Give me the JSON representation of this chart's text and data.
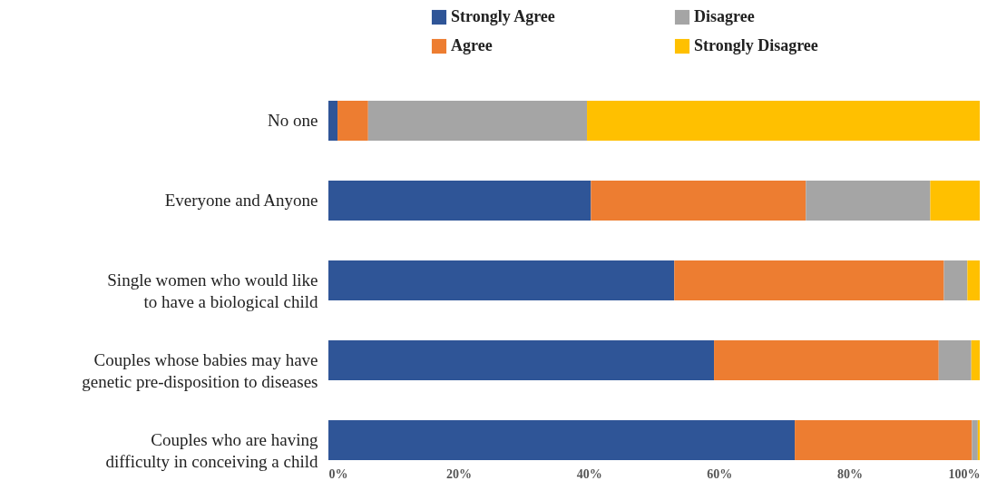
{
  "chart_data": {
    "type": "bar",
    "orientation": "horizontal",
    "stacked": true,
    "legend": "top",
    "categories": [
      "No one",
      "Everyone and Anyone",
      "Single women who would like\nto have a biological child",
      "Couples whose babies may have\ngenetic pre-disposition to diseases",
      "Couples who are having\ndifficulty in conceiving a child"
    ],
    "series": [
      {
        "name": "Strongly Agree",
        "color": "#2f5597",
        "values": [
          1.4,
          40.3,
          53.1,
          59.2,
          71.6
        ]
      },
      {
        "name": "Agree",
        "color": "#ed7d31",
        "values": [
          4.7,
          33.0,
          41.4,
          34.5,
          27.2
        ]
      },
      {
        "name": "Disagree",
        "color": "#a5a5a5",
        "values": [
          33.6,
          19.1,
          3.6,
          5.0,
          0.9
        ]
      },
      {
        "name": "Strongly Disagree",
        "color": "#ffc000",
        "values": [
          60.3,
          7.6,
          1.9,
          1.3,
          0.3
        ]
      }
    ],
    "xlim": [
      0,
      100
    ],
    "xticks": [
      {
        "value": 0,
        "label": "0%"
      },
      {
        "value": 20,
        "label": "20%"
      },
      {
        "value": 40,
        "label": "40%"
      },
      {
        "value": 60,
        "label": "60%"
      },
      {
        "value": 80,
        "label": "80%"
      },
      {
        "value": 100,
        "label": "100%"
      }
    ],
    "grid": false
  }
}
